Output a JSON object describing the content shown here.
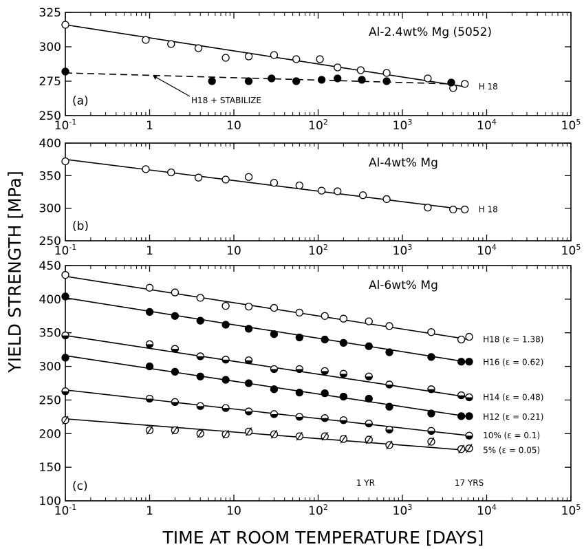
{
  "figure": {
    "ylabel": "YIELD STRENGTH [MPa]",
    "xlabel": "TIME AT ROOM TEMPERATURE [DAYS]"
  },
  "chart_data": [
    {
      "type": "scatter",
      "panel": "(a)",
      "title": "Al-2.4wt% Mg (5052)",
      "x_scale": "log",
      "xlim": [
        0.1,
        100000
      ],
      "ylim": [
        250,
        325
      ],
      "y_ticks": [
        250,
        275,
        300,
        325
      ],
      "x_ticks": [
        0.1,
        1,
        10,
        100,
        1000,
        10000,
        100000
      ],
      "x_tick_labels": [
        "10",
        "1",
        "10",
        "10",
        "10",
        "10",
        "10"
      ],
      "x_tick_exponents": [
        "-1",
        "",
        "",
        "2",
        "3",
        "4",
        "5"
      ],
      "annotation": "H18 + STABILIZE",
      "series": [
        {
          "name": "H 18",
          "marker": "open",
          "line": "solid",
          "fit": [
            [
              0.1,
              316
            ],
            [
              5500,
              271
            ]
          ],
          "x": [
            0.1,
            0.9,
            1.8,
            3.8,
            8,
            15,
            30,
            55,
            105,
            170,
            320,
            650,
            2000,
            4000,
            5500
          ],
          "y": [
            316,
            305,
            302,
            299,
            292,
            293,
            294,
            291,
            291,
            285,
            283,
            281,
            277,
            270,
            273
          ]
        },
        {
          "name": "",
          "marker": "filled",
          "line": "dashed",
          "fit": [
            [
              0.1,
              281
            ],
            [
              4000,
              273
            ]
          ],
          "x": [
            0.1,
            5.5,
            15,
            28,
            55,
            110,
            170,
            330,
            650,
            3800
          ],
          "y": [
            282,
            275,
            275,
            277,
            275,
            276,
            277,
            276,
            275,
            274
          ]
        }
      ]
    },
    {
      "type": "scatter",
      "panel": "(b)",
      "title": "Al-4wt% Mg",
      "x_scale": "log",
      "xlim": [
        0.1,
        100000
      ],
      "ylim": [
        250,
        400
      ],
      "y_ticks": [
        250,
        300,
        350,
        400
      ],
      "x_ticks": [
        0.1,
        1,
        10,
        100,
        1000,
        10000,
        100000
      ],
      "x_tick_labels": [
        "10",
        "1",
        "10",
        "10",
        "10",
        "10",
        "10"
      ],
      "x_tick_exponents": [
        "-1",
        "",
        "",
        "2",
        "3",
        "4",
        "5"
      ],
      "series": [
        {
          "name": "H 18",
          "marker": "open",
          "line": "solid",
          "fit": [
            [
              0.1,
              375
            ],
            [
              5500,
              298
            ]
          ],
          "x": [
            0.1,
            0.9,
            1.8,
            3.8,
            8,
            15,
            30,
            60,
            110,
            170,
            340,
            650,
            2000,
            4000,
            5500
          ],
          "y": [
            372,
            360,
            355,
            347,
            344,
            348,
            339,
            335,
            327,
            326,
            320,
            314,
            301,
            298,
            298
          ]
        }
      ]
    },
    {
      "type": "scatter",
      "panel": "(c)",
      "title": "Al-6wt% Mg",
      "x_scale": "log",
      "xlim": [
        0.1,
        100000
      ],
      "ylim": [
        100,
        450
      ],
      "y_ticks": [
        100,
        150,
        200,
        250,
        300,
        350,
        400,
        450
      ],
      "x_ticks": [
        0.1,
        1,
        10,
        100,
        1000,
        10000,
        100000
      ],
      "x_tick_labels": [
        "10",
        "1",
        "10",
        "10",
        "10",
        "10",
        "10"
      ],
      "x_tick_exponents": [
        "-1",
        "",
        "",
        "2",
        "3",
        "4",
        "5"
      ],
      "annotations": [
        {
          "text": "1 YR",
          "x": 365
        },
        {
          "text": "17 YRS",
          "x": 6200
        }
      ],
      "series": [
        {
          "name": "H18 (ε = 1.38)",
          "marker": "open",
          "fit": [
            [
              0.1,
              434
            ],
            [
              6200,
              340
            ]
          ],
          "x": [
            0.1,
            1,
            2,
            4,
            8,
            15,
            30,
            60,
            120,
            200,
            400,
            700,
            2200,
            5000,
            6200
          ],
          "y": [
            436,
            417,
            410,
            402,
            390,
            389,
            387,
            380,
            375,
            371,
            367,
            360,
            351,
            340,
            344
          ]
        },
        {
          "name": "H16 (ε = 0.62)",
          "marker": "filled",
          "fit": [
            [
              0.1,
              402
            ],
            [
              6200,
              306
            ]
          ],
          "x": [
            0.1,
            1,
            2,
            4,
            8,
            15,
            30,
            60,
            120,
            200,
            400,
            700,
            2200,
            5000,
            6200
          ],
          "y": [
            404,
            381,
            375,
            368,
            362,
            356,
            348,
            343,
            340,
            335,
            330,
            321,
            314,
            307,
            307
          ]
        },
        {
          "name": "H14 (ε = 0.48)",
          "marker": "half",
          "fit": [
            [
              0.1,
              346
            ],
            [
              6200,
              254
            ]
          ],
          "x": [
            0.1,
            1,
            2,
            4,
            8,
            15,
            30,
            60,
            120,
            200,
            400,
            700,
            2200,
            5000,
            6200
          ],
          "y": [
            346,
            333,
            326,
            315,
            310,
            309,
            296,
            296,
            293,
            289,
            285,
            273,
            266,
            257,
            254
          ]
        },
        {
          "name": "H12 (ε = 0.21)",
          "marker": "filled",
          "fit": [
            [
              0.1,
              316
            ],
            [
              6200,
              225
            ]
          ],
          "x": [
            0.1,
            1,
            2,
            4,
            8,
            15,
            30,
            60,
            120,
            200,
            400,
            700,
            2200,
            5000,
            6200
          ],
          "y": [
            313,
            300,
            292,
            285,
            280,
            275,
            266,
            261,
            260,
            255,
            252,
            240,
            230,
            226,
            226
          ]
        },
        {
          "name": "10% (ε = 0.1)",
          "marker": "half",
          "fit": [
            [
              0.1,
              265
            ],
            [
              6200,
              197
            ]
          ],
          "x": [
            0.1,
            1,
            2,
            4,
            8,
            15,
            30,
            60,
            120,
            200,
            400,
            700,
            2200,
            6200
          ],
          "y": [
            263,
            252,
            247,
            241,
            238,
            233,
            229,
            225,
            223,
            220,
            215,
            206,
            204,
            197
          ]
        },
        {
          "name": "5% (ε = 0.05)",
          "marker": "slashed",
          "fit": [
            [
              0.1,
              222
            ],
            [
              6200,
              175
            ]
          ],
          "x": [
            0.1,
            1,
            2,
            4,
            8,
            15,
            30,
            60,
            120,
            200,
            400,
            700,
            2200,
            5000,
            6200
          ],
          "y": [
            220,
            205,
            205,
            200,
            199,
            203,
            199,
            196,
            196,
            192,
            191,
            183,
            188,
            177,
            178
          ]
        }
      ]
    }
  ]
}
